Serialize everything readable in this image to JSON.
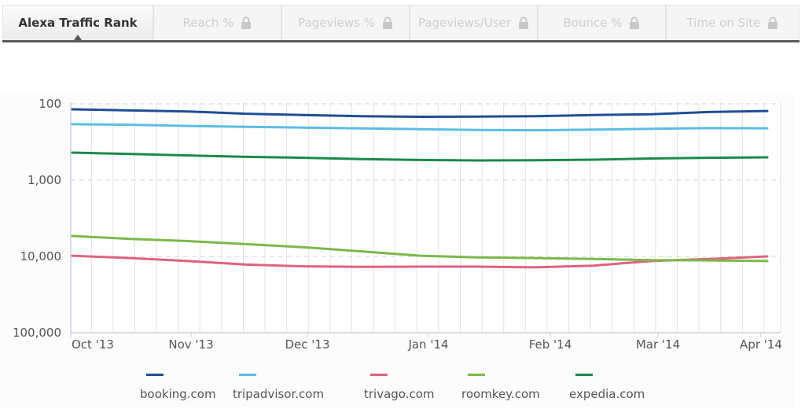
{
  "tabs": [
    {
      "label": "Alexa Traffic Rank",
      "active": true,
      "locked": false
    },
    {
      "label": "Reach %",
      "active": false,
      "locked": true
    },
    {
      "label": "Pageviews %",
      "active": false,
      "locked": true
    },
    {
      "label": "Pageviews/User",
      "active": false,
      "locked": true
    },
    {
      "label": "Bounce %",
      "active": false,
      "locked": true
    },
    {
      "label": "Time on Site",
      "active": false,
      "locked": true
    }
  ],
  "icons": {
    "lock": "lock-icon",
    "caret": "caret-up-icon"
  },
  "chart_data": {
    "type": "line",
    "title": "Alexa Traffic Rank",
    "xlabel": "",
    "ylabel": "",
    "y_scale": "log",
    "y_inverted": true,
    "ylim": [
      100,
      100000
    ],
    "y_ticks": [
      "100",
      "1,000",
      "10,000",
      "100,000"
    ],
    "x_ticks": [
      "Oct '13",
      "Nov '13",
      "Dec '13",
      "Jan '14",
      "Feb '14",
      "Mar '14",
      "Apr '14"
    ],
    "grid": {
      "horizontal": "dashed",
      "vertical": "weekly"
    },
    "legend_position": "bottom",
    "x": [
      "Oct '13",
      "mid Oct",
      "Nov '13",
      "mid Nov",
      "Dec '13",
      "mid Dec",
      "Jan '14",
      "mid Jan",
      "Feb '14",
      "mid Feb",
      "Mar '14",
      "mid Mar",
      "Apr '14"
    ],
    "series": [
      {
        "name": "booking.com",
        "color": "#1f4e96",
        "values": [
          118,
          122,
          126,
          135,
          140,
          145,
          148,
          147,
          145,
          140,
          137,
          128,
          124
        ]
      },
      {
        "name": "tripadvisor.com",
        "color": "#5bbde4",
        "values": [
          185,
          188,
          195,
          200,
          205,
          210,
          215,
          220,
          222,
          218,
          212,
          208,
          209
        ]
      },
      {
        "name": "trivago.com",
        "color": "#e0637e",
        "values": [
          9800,
          10500,
          11500,
          12800,
          13500,
          13700,
          13600,
          13600,
          13900,
          13200,
          11500,
          10800,
          10000
        ]
      },
      {
        "name": "roomkey.com",
        "color": "#7bb94b",
        "values": [
          5400,
          5900,
          6300,
          6900,
          7600,
          8600,
          9800,
          10300,
          10500,
          10800,
          11200,
          11300,
          11500
        ]
      },
      {
        "name": "expedia.com",
        "color": "#1b8a4c",
        "values": [
          436,
          455,
          475,
          495,
          510,
          530,
          545,
          553,
          550,
          540,
          520,
          510,
          502
        ]
      }
    ]
  }
}
